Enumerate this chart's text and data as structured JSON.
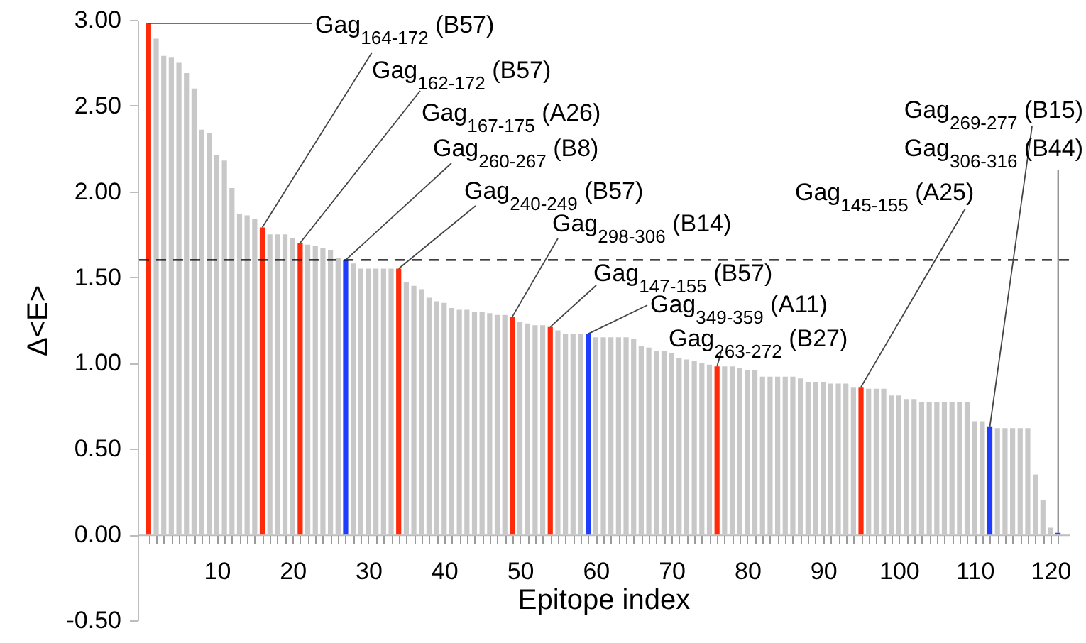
{
  "chart_data": {
    "type": "bar",
    "xlabel": "Epitope index",
    "ylabel": "Δ<E>",
    "x": [
      1,
      2,
      3,
      4,
      5,
      6,
      7,
      8,
      9,
      10,
      11,
      12,
      13,
      14,
      15,
      16,
      17,
      18,
      19,
      20,
      21,
      22,
      23,
      24,
      25,
      26,
      27,
      28,
      29,
      30,
      31,
      32,
      33,
      34,
      35,
      36,
      37,
      38,
      39,
      40,
      41,
      42,
      43,
      44,
      45,
      46,
      47,
      48,
      49,
      50,
      51,
      52,
      53,
      54,
      55,
      56,
      57,
      58,
      59,
      60,
      61,
      62,
      63,
      64,
      65,
      66,
      67,
      68,
      69,
      70,
      71,
      72,
      73,
      74,
      75,
      76,
      77,
      78,
      79,
      80,
      81,
      82,
      83,
      84,
      85,
      86,
      87,
      88,
      89,
      90,
      91,
      92,
      93,
      94,
      95,
      96,
      97,
      98,
      99,
      100,
      101,
      102,
      103,
      104,
      105,
      106,
      107,
      108,
      109,
      110,
      111,
      112,
      113,
      114,
      115,
      116,
      117,
      118,
      119,
      120,
      121
    ],
    "values": [
      2.98,
      2.89,
      2.79,
      2.78,
      2.75,
      2.69,
      2.6,
      2.36,
      2.34,
      2.21,
      2.18,
      2.02,
      1.87,
      1.86,
      1.84,
      1.79,
      1.75,
      1.75,
      1.75,
      1.73,
      1.7,
      1.69,
      1.68,
      1.67,
      1.66,
      1.61,
      1.6,
      1.58,
      1.55,
      1.55,
      1.55,
      1.55,
      1.55,
      1.55,
      1.47,
      1.45,
      1.43,
      1.38,
      1.36,
      1.35,
      1.32,
      1.31,
      1.31,
      1.3,
      1.3,
      1.29,
      1.28,
      1.28,
      1.27,
      1.24,
      1.23,
      1.22,
      1.22,
      1.21,
      1.19,
      1.17,
      1.17,
      1.17,
      1.17,
      1.15,
      1.15,
      1.15,
      1.15,
      1.15,
      1.14,
      1.1,
      1.09,
      1.07,
      1.07,
      1.06,
      1.03,
      1.02,
      1.01,
      1.0,
      0.99,
      0.98,
      0.98,
      0.98,
      0.97,
      0.96,
      0.96,
      0.92,
      0.92,
      0.92,
      0.92,
      0.92,
      0.91,
      0.89,
      0.89,
      0.89,
      0.88,
      0.88,
      0.88,
      0.86,
      0.86,
      0.85,
      0.85,
      0.85,
      0.81,
      0.81,
      0.79,
      0.79,
      0.77,
      0.77,
      0.77,
      0.77,
      0.77,
      0.77,
      0.77,
      0.66,
      0.66,
      0.63,
      0.62,
      0.62,
      0.62,
      0.62,
      0.62,
      0.35,
      0.2,
      0.04,
      0.01
    ],
    "colors": [
      "#ff2a0a",
      "#c8c8c8",
      "#c8c8c8",
      "#c8c8c8",
      "#c8c8c8",
      "#c8c8c8",
      "#c8c8c8",
      "#c8c8c8",
      "#c8c8c8",
      "#c8c8c8",
      "#c8c8c8",
      "#c8c8c8",
      "#c8c8c8",
      "#c8c8c8",
      "#c8c8c8",
      "#ff2a0a",
      "#c8c8c8",
      "#c8c8c8",
      "#c8c8c8",
      "#c8c8c8",
      "#ff2a0a",
      "#c8c8c8",
      "#c8c8c8",
      "#c8c8c8",
      "#c8c8c8",
      "#c8c8c8",
      "#1f3dff",
      "#c8c8c8",
      "#c8c8c8",
      "#c8c8c8",
      "#c8c8c8",
      "#c8c8c8",
      "#c8c8c8",
      "#ff2a0a",
      "#c8c8c8",
      "#c8c8c8",
      "#c8c8c8",
      "#c8c8c8",
      "#c8c8c8",
      "#c8c8c8",
      "#c8c8c8",
      "#c8c8c8",
      "#c8c8c8",
      "#c8c8c8",
      "#c8c8c8",
      "#c8c8c8",
      "#c8c8c8",
      "#c8c8c8",
      "#ff2a0a",
      "#c8c8c8",
      "#c8c8c8",
      "#c8c8c8",
      "#c8c8c8",
      "#ff2a0a",
      "#c8c8c8",
      "#c8c8c8",
      "#c8c8c8",
      "#c8c8c8",
      "#1f3dff",
      "#c8c8c8",
      "#c8c8c8",
      "#c8c8c8",
      "#c8c8c8",
      "#c8c8c8",
      "#c8c8c8",
      "#c8c8c8",
      "#c8c8c8",
      "#c8c8c8",
      "#c8c8c8",
      "#c8c8c8",
      "#c8c8c8",
      "#c8c8c8",
      "#c8c8c8",
      "#c8c8c8",
      "#c8c8c8",
      "#ff2a0a",
      "#c8c8c8",
      "#c8c8c8",
      "#c8c8c8",
      "#c8c8c8",
      "#c8c8c8",
      "#c8c8c8",
      "#c8c8c8",
      "#c8c8c8",
      "#c8c8c8",
      "#c8c8c8",
      "#c8c8c8",
      "#c8c8c8",
      "#c8c8c8",
      "#c8c8c8",
      "#c8c8c8",
      "#c8c8c8",
      "#c8c8c8",
      "#c8c8c8",
      "#ff2a0a",
      "#c8c8c8",
      "#c8c8c8",
      "#c8c8c8",
      "#c8c8c8",
      "#c8c8c8",
      "#c8c8c8",
      "#c8c8c8",
      "#c8c8c8",
      "#c8c8c8",
      "#c8c8c8",
      "#c8c8c8",
      "#c8c8c8",
      "#c8c8c8",
      "#c8c8c8",
      "#c8c8c8",
      "#c8c8c8",
      "#1f3dff",
      "#c8c8c8",
      "#c8c8c8",
      "#c8c8c8",
      "#c8c8c8",
      "#c8c8c8",
      "#c8c8c8",
      "#c8c8c8",
      "#c8c8c8",
      "#1f3dff"
    ],
    "xlim": [
      0.5,
      121.5
    ],
    "xticks": [
      {
        "value": 1,
        "label": null
      },
      {
        "value": 2,
        "label": null
      },
      {
        "value": 3,
        "label": null
      },
      {
        "value": 4,
        "label": null
      },
      {
        "value": 5,
        "label": null
      },
      {
        "value": 6,
        "label": null
      },
      {
        "value": 7,
        "label": null
      },
      {
        "value": 8,
        "label": null
      },
      {
        "value": 9,
        "label": null
      },
      10,
      {
        "value": 11,
        "label": null
      },
      {
        "value": 12,
        "label": null
      },
      {
        "value": 13,
        "label": null
      },
      {
        "value": 14,
        "label": null
      },
      {
        "value": 15,
        "label": null
      },
      {
        "value": 16,
        "label": null
      },
      {
        "value": 17,
        "label": null
      },
      {
        "value": 18,
        "label": null
      },
      {
        "value": 19,
        "label": null
      },
      20,
      {
        "value": 21,
        "label": null
      },
      {
        "value": 22,
        "label": null
      },
      {
        "value": 23,
        "label": null
      },
      {
        "value": 24,
        "label": null
      },
      {
        "value": 25,
        "label": null
      },
      {
        "value": 26,
        "label": null
      },
      {
        "value": 27,
        "label": null
      },
      {
        "value": 28,
        "label": null
      },
      {
        "value": 29,
        "label": null
      },
      30,
      {
        "value": 31,
        "label": null
      },
      {
        "value": 32,
        "label": null
      },
      {
        "value": 33,
        "label": null
      },
      {
        "value": 34,
        "label": null
      },
      {
        "value": 35,
        "label": null
      },
      {
        "value": 36,
        "label": null
      },
      {
        "value": 37,
        "label": null
      },
      {
        "value": 38,
        "label": null
      },
      {
        "value": 39,
        "label": null
      },
      40,
      {
        "value": 41,
        "label": null
      },
      {
        "value": 42,
        "label": null
      },
      {
        "value": 43,
        "label": null
      },
      {
        "value": 44,
        "label": null
      },
      {
        "value": 45,
        "label": null
      },
      {
        "value": 46,
        "label": null
      },
      {
        "value": 47,
        "label": null
      },
      {
        "value": 48,
        "label": null
      },
      {
        "value": 49,
        "label": null
      },
      50,
      {
        "value": 51,
        "label": null
      },
      {
        "value": 52,
        "label": null
      },
      {
        "value": 53,
        "label": null
      },
      {
        "value": 54,
        "label": null
      },
      {
        "value": 55,
        "label": null
      },
      {
        "value": 56,
        "label": null
      },
      {
        "value": 57,
        "label": null
      },
      {
        "value": 58,
        "label": null
      },
      {
        "value": 59,
        "label": null
      },
      60,
      {
        "value": 61,
        "label": null
      },
      {
        "value": 62,
        "label": null
      },
      {
        "value": 63,
        "label": null
      },
      {
        "value": 64,
        "label": null
      },
      {
        "value": 65,
        "label": null
      },
      {
        "value": 66,
        "label": null
      },
      {
        "value": 67,
        "label": null
      },
      {
        "value": 68,
        "label": null
      },
      {
        "value": 69,
        "label": null
      },
      70,
      {
        "value": 71,
        "label": null
      },
      {
        "value": 72,
        "label": null
      },
      {
        "value": 73,
        "label": null
      },
      {
        "value": 74,
        "label": null
      },
      {
        "value": 75,
        "label": null
      },
      {
        "value": 76,
        "label": null
      },
      {
        "value": 77,
        "label": null
      },
      {
        "value": 78,
        "label": null
      },
      {
        "value": 79,
        "label": null
      },
      80,
      {
        "value": 81,
        "label": null
      },
      {
        "value": 82,
        "label": null
      },
      {
        "value": 83,
        "label": null
      },
      {
        "value": 84,
        "label": null
      },
      {
        "value": 85,
        "label": null
      },
      {
        "value": 86,
        "label": null
      },
      {
        "value": 87,
        "label": null
      },
      {
        "value": 88,
        "label": null
      },
      {
        "value": 89,
        "label": null
      },
      90,
      {
        "value": 91,
        "label": null
      },
      {
        "value": 92,
        "label": null
      },
      {
        "value": 93,
        "label": null
      },
      {
        "value": 94,
        "label": null
      },
      {
        "value": 95,
        "label": null
      },
      {
        "value": 96,
        "label": null
      },
      {
        "value": 97,
        "label": null
      },
      {
        "value": 98,
        "label": null
      },
      {
        "value": 99,
        "label": null
      },
      100,
      {
        "value": 101,
        "label": null
      },
      {
        "value": 102,
        "label": null
      },
      {
        "value": 103,
        "label": null
      },
      {
        "value": 104,
        "label": null
      },
      {
        "value": 105,
        "label": null
      },
      {
        "value": 106,
        "label": null
      },
      {
        "value": 107,
        "label": null
      },
      {
        "value": 108,
        "label": null
      },
      {
        "value": 109,
        "label": null
      },
      110,
      {
        "value": 111,
        "label": null
      },
      {
        "value": 112,
        "label": null
      },
      {
        "value": 113,
        "label": null
      },
      {
        "value": 114,
        "label": null
      },
      {
        "value": 115,
        "label": null
      },
      {
        "value": 116,
        "label": null
      },
      {
        "value": 117,
        "label": null
      },
      {
        "value": 118,
        "label": null
      },
      {
        "value": 119,
        "label": null
      },
      120,
      {
        "value": 121,
        "label": null
      }
    ],
    "ylim": [
      -0.5,
      3.0
    ],
    "yticks": [
      {
        "value": -0.5,
        "label": "-0.50"
      },
      {
        "value": 0,
        "label": "0.00"
      },
      {
        "value": 0.5,
        "label": "0.50"
      },
      {
        "value": 1,
        "label": "1.00"
      },
      {
        "value": 1.5,
        "label": "1.50"
      },
      {
        "value": 2,
        "label": "2.00"
      },
      {
        "value": 2.5,
        "label": "2.50"
      },
      {
        "value": 3,
        "label": "3.00"
      }
    ],
    "ref_lines": [
      {
        "axis": "y",
        "value": 1.6,
        "label": null,
        "line_style": "dashed",
        "color": "#000000"
      }
    ],
    "annotations": [
      {
        "text": "Gag$_{164-172}$ (B57)",
        "x": 1,
        "y": 2.98
      },
      {
        "text": "Gag$_{162-172}$ (B57)",
        "x": 16,
        "y": 1.79
      },
      {
        "text": "Gag$_{167-175}$ (A26)",
        "x": 21,
        "y": 1.7
      },
      {
        "text": "Gag$_{260-267}$ (B8)",
        "x": 27,
        "y": 1.6
      },
      {
        "text": "Gag$_{240-249}$ (B57)",
        "x": 34,
        "y": 1.55
      },
      {
        "text": "Gag$_{298-306}$ (B14)",
        "x": 49,
        "y": 1.27
      },
      {
        "text": "Gag$_{147-155}$ (B57)",
        "x": 54,
        "y": 1.21
      },
      {
        "text": "Gag$_{349-359}$ (A11)",
        "x": 59,
        "y": 1.17
      },
      {
        "text": "Gag$_{263-272}$ (B27)",
        "x": 76,
        "y": 0.98
      },
      {
        "text": "Gag$_{269-277}$ (B15)",
        "x": 112,
        "y": 0.63
      },
      {
        "text": "Gag$_{306-316}$ (B44)",
        "x": 121,
        "y": 0.01
      },
      {
        "text": "Gag$_{145-155}$ (A25)",
        "x": 95,
        "y": 0.86
      }
    ]
  }
}
